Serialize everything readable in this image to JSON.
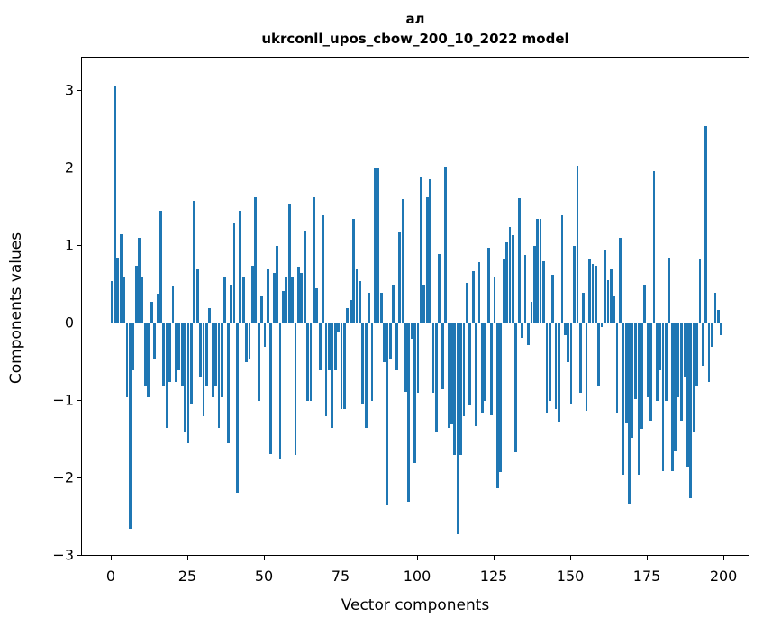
{
  "title": {
    "line1": "ал",
    "line2": "ukrconll_upos_cbow_200_10_2022 model"
  },
  "axes": {
    "xlabel": "Vector components",
    "ylabel": "Components values",
    "x_tick_values": [
      0,
      25,
      50,
      75,
      100,
      125,
      150,
      175,
      200
    ],
    "x_tick_labels": [
      "0",
      "25",
      "50",
      "75",
      "100",
      "125",
      "150",
      "175",
      "200"
    ],
    "y_tick_values": [
      3,
      2,
      1,
      0,
      -1,
      -2,
      -3
    ],
    "y_tick_labels": [
      "3",
      "2",
      "1",
      "0",
      "−1",
      "−2",
      "−3"
    ]
  },
  "chart_data": {
    "type": "bar",
    "title": "ал — ukrconll_upos_cbow_200_10_2022 model",
    "xlabel": "Vector components",
    "ylabel": "Components values",
    "x_start": 0,
    "x_step": 1,
    "bar_width": 0.8,
    "bar_color": "#1f77b4",
    "xlim": [
      -9.7,
      208.5
    ],
    "ylim": [
      -3.01,
      3.43
    ],
    "grid": false,
    "legend": null,
    "values": [
      0.55,
      3.07,
      0.85,
      1.15,
      0.6,
      -0.95,
      -2.65,
      -0.6,
      0.75,
      1.1,
      0.6,
      -0.8,
      -0.95,
      0.28,
      -0.45,
      0.38,
      1.45,
      -0.8,
      -1.35,
      -0.75,
      0.48,
      -0.75,
      -0.6,
      -0.8,
      -1.4,
      -1.55,
      -1.05,
      1.58,
      0.7,
      -0.7,
      -1.2,
      -0.8,
      0.2,
      -0.95,
      -0.8,
      -1.35,
      -0.95,
      0.6,
      -1.55,
      0.5,
      1.3,
      -2.18,
      1.45,
      0.6,
      -0.5,
      -0.45,
      0.75,
      1.63,
      -1.0,
      0.35,
      -0.3,
      0.7,
      -1.68,
      0.65,
      1.0,
      -1.75,
      0.42,
      0.6,
      1.53,
      0.6,
      -1.7,
      0.73,
      0.65,
      1.2,
      -1.0,
      -1.0,
      1.63,
      0.45,
      -0.6,
      1.4,
      -1.2,
      -0.6,
      -1.35,
      -0.6,
      -0.1,
      -1.1,
      -1.1,
      0.2,
      0.3,
      1.35,
      0.7,
      0.55,
      -1.05,
      -1.35,
      0.4,
      -1.0,
      2.0,
      2.0,
      0.4,
      -0.5,
      -2.35,
      -0.45,
      0.5,
      -0.6,
      1.17,
      1.6,
      -0.88,
      -2.3,
      -0.2,
      -1.8,
      -0.9,
      1.9,
      0.5,
      1.63,
      1.86,
      -0.9,
      -1.4,
      0.9,
      -0.85,
      2.02,
      -1.35,
      -1.3,
      -1.7,
      -2.72,
      -1.7,
      -1.2,
      0.52,
      -1.06,
      0.67,
      -1.33,
      0.79,
      -1.16,
      -1.0,
      0.98,
      -1.18,
      0.61,
      -2.13,
      -1.92,
      0.83,
      1.05,
      1.24,
      1.14,
      -1.66,
      1.62,
      -0.18,
      0.89,
      -0.28,
      0.28,
      1.0,
      1.35,
      1.35,
      0.8,
      -1.15,
      -1.0,
      0.63,
      -1.1,
      -1.27,
      1.4,
      -0.15,
      -0.5,
      -1.05,
      1.0,
      2.03,
      -0.9,
      0.4,
      -1.13,
      0.84,
      0.77,
      0.75,
      -0.8,
      -0.05,
      0.95,
      0.56,
      0.7,
      0.35,
      -1.15,
      1.1,
      -1.95,
      -1.28,
      -2.33,
      -1.48,
      -0.97,
      -1.95,
      -1.36,
      0.5,
      -0.95,
      -1.25,
      1.97,
      -1.0,
      -0.6,
      -1.9,
      -1.0,
      0.85,
      -1.9,
      -1.65,
      -0.95,
      -1.25,
      -0.7,
      -1.85,
      -2.25,
      -1.4,
      -0.8,
      0.83,
      -0.55,
      2.55,
      -0.75,
      -0.3,
      0.4,
      0.17,
      -0.15
    ]
  }
}
